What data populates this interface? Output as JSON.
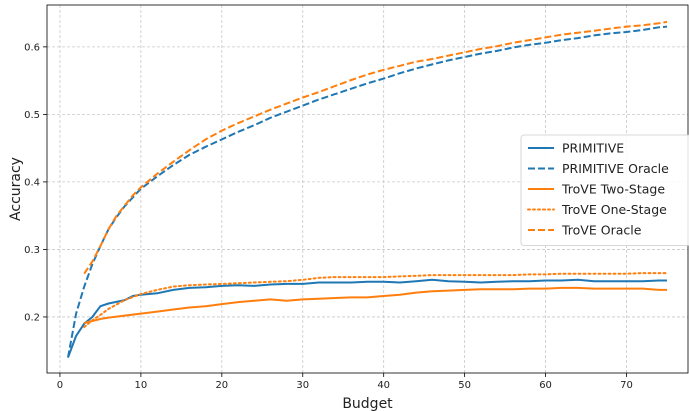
{
  "chart_data": {
    "type": "line",
    "title": "",
    "xlabel": "Budget",
    "ylabel": "Accuracy",
    "xlim": [
      -1.6,
      77.6
    ],
    "ylim": [
      0.117,
      0.662
    ],
    "xticks": [
      0,
      10,
      20,
      30,
      40,
      50,
      60,
      70
    ],
    "yticks": [
      0.2,
      0.3,
      0.4,
      0.5,
      0.6
    ],
    "xtick_labels": [
      "0",
      "10",
      "20",
      "30",
      "40",
      "50",
      "60",
      "70"
    ],
    "ytick_labels": [
      "0.2",
      "0.3",
      "0.4",
      "0.5",
      "0.6"
    ],
    "grid": true,
    "legend_position": "center-right",
    "series": [
      {
        "name": "PRIMITIVE",
        "color": "#1f77b4",
        "style": "solid",
        "points": [
          [
            1,
            0.14
          ],
          [
            2,
            0.172
          ],
          [
            3,
            0.19
          ],
          [
            4,
            0.2
          ],
          [
            5,
            0.216
          ],
          [
            6,
            0.22
          ],
          [
            8,
            0.225
          ],
          [
            9,
            0.231
          ],
          [
            10,
            0.233
          ],
          [
            12,
            0.235
          ],
          [
            14,
            0.24
          ],
          [
            16,
            0.243
          ],
          [
            18,
            0.244
          ],
          [
            20,
            0.246
          ],
          [
            22,
            0.247
          ],
          [
            24,
            0.246
          ],
          [
            26,
            0.248
          ],
          [
            28,
            0.249
          ],
          [
            30,
            0.249
          ],
          [
            32,
            0.251
          ],
          [
            34,
            0.251
          ],
          [
            36,
            0.251
          ],
          [
            38,
            0.252
          ],
          [
            40,
            0.252
          ],
          [
            42,
            0.251
          ],
          [
            44,
            0.253
          ],
          [
            46,
            0.255
          ],
          [
            48,
            0.253
          ],
          [
            50,
            0.252
          ],
          [
            52,
            0.251
          ],
          [
            54,
            0.252
          ],
          [
            56,
            0.253
          ],
          [
            58,
            0.253
          ],
          [
            60,
            0.254
          ],
          [
            62,
            0.254
          ],
          [
            64,
            0.255
          ],
          [
            66,
            0.253
          ],
          [
            68,
            0.253
          ],
          [
            70,
            0.253
          ],
          [
            72,
            0.253
          ],
          [
            74,
            0.254
          ],
          [
            75,
            0.254
          ]
        ]
      },
      {
        "name": "PRIMITIVE Oracle",
        "color": "#1f77b4",
        "style": "dashed",
        "points": [
          [
            1,
            0.14
          ],
          [
            2,
            0.205
          ],
          [
            3,
            0.245
          ],
          [
            4,
            0.278
          ],
          [
            5,
            0.305
          ],
          [
            6,
            0.33
          ],
          [
            7,
            0.348
          ],
          [
            8,
            0.364
          ],
          [
            9,
            0.377
          ],
          [
            10,
            0.39
          ],
          [
            12,
            0.408
          ],
          [
            14,
            0.425
          ],
          [
            16,
            0.44
          ],
          [
            18,
            0.452
          ],
          [
            20,
            0.463
          ],
          [
            22,
            0.474
          ],
          [
            24,
            0.484
          ],
          [
            26,
            0.495
          ],
          [
            28,
            0.504
          ],
          [
            30,
            0.513
          ],
          [
            32,
            0.522
          ],
          [
            34,
            0.53
          ],
          [
            36,
            0.538
          ],
          [
            38,
            0.546
          ],
          [
            40,
            0.553
          ],
          [
            42,
            0.561
          ],
          [
            44,
            0.568
          ],
          [
            46,
            0.574
          ],
          [
            48,
            0.58
          ],
          [
            50,
            0.585
          ],
          [
            52,
            0.59
          ],
          [
            54,
            0.594
          ],
          [
            56,
            0.599
          ],
          [
            58,
            0.603
          ],
          [
            60,
            0.606
          ],
          [
            62,
            0.61
          ],
          [
            64,
            0.613
          ],
          [
            66,
            0.617
          ],
          [
            68,
            0.62
          ],
          [
            70,
            0.622
          ],
          [
            72,
            0.625
          ],
          [
            74,
            0.629
          ],
          [
            75,
            0.63
          ]
        ]
      },
      {
        "name": "TroVE Two-Stage",
        "color": "#ff7f0e",
        "style": "solid",
        "points": [
          [
            3,
            0.191
          ],
          [
            4,
            0.194
          ],
          [
            5,
            0.197
          ],
          [
            6,
            0.199
          ],
          [
            8,
            0.202
          ],
          [
            10,
            0.205
          ],
          [
            12,
            0.208
          ],
          [
            14,
            0.211
          ],
          [
            16,
            0.214
          ],
          [
            18,
            0.216
          ],
          [
            20,
            0.219
          ],
          [
            22,
            0.222
          ],
          [
            24,
            0.224
          ],
          [
            26,
            0.226
          ],
          [
            28,
            0.224
          ],
          [
            30,
            0.226
          ],
          [
            32,
            0.227
          ],
          [
            34,
            0.228
          ],
          [
            36,
            0.229
          ],
          [
            38,
            0.229
          ],
          [
            40,
            0.231
          ],
          [
            42,
            0.233
          ],
          [
            44,
            0.236
          ],
          [
            46,
            0.238
          ],
          [
            48,
            0.239
          ],
          [
            50,
            0.24
          ],
          [
            52,
            0.241
          ],
          [
            54,
            0.241
          ],
          [
            56,
            0.241
          ],
          [
            58,
            0.242
          ],
          [
            60,
            0.242
          ],
          [
            62,
            0.243
          ],
          [
            64,
            0.243
          ],
          [
            66,
            0.242
          ],
          [
            68,
            0.242
          ],
          [
            70,
            0.242
          ],
          [
            72,
            0.242
          ],
          [
            74,
            0.24
          ],
          [
            75,
            0.24
          ]
        ]
      },
      {
        "name": "TroVE One-Stage",
        "color": "#ff7f0e",
        "style": "dotted",
        "points": [
          [
            3,
            0.185
          ],
          [
            4,
            0.195
          ],
          [
            5,
            0.203
          ],
          [
            6,
            0.212
          ],
          [
            8,
            0.225
          ],
          [
            10,
            0.234
          ],
          [
            12,
            0.24
          ],
          [
            14,
            0.245
          ],
          [
            16,
            0.247
          ],
          [
            18,
            0.248
          ],
          [
            20,
            0.249
          ],
          [
            22,
            0.25
          ],
          [
            24,
            0.251
          ],
          [
            26,
            0.252
          ],
          [
            28,
            0.253
          ],
          [
            30,
            0.255
          ],
          [
            32,
            0.258
          ],
          [
            34,
            0.259
          ],
          [
            36,
            0.259
          ],
          [
            38,
            0.259
          ],
          [
            40,
            0.259
          ],
          [
            42,
            0.26
          ],
          [
            44,
            0.261
          ],
          [
            46,
            0.262
          ],
          [
            48,
            0.262
          ],
          [
            50,
            0.262
          ],
          [
            52,
            0.262
          ],
          [
            54,
            0.262
          ],
          [
            56,
            0.262
          ],
          [
            58,
            0.263
          ],
          [
            60,
            0.263
          ],
          [
            62,
            0.264
          ],
          [
            64,
            0.264
          ],
          [
            66,
            0.264
          ],
          [
            68,
            0.264
          ],
          [
            70,
            0.264
          ],
          [
            72,
            0.265
          ],
          [
            74,
            0.265
          ],
          [
            75,
            0.265
          ]
        ]
      },
      {
        "name": "TroVE Oracle",
        "color": "#ff7f0e",
        "style": "dashed",
        "points": [
          [
            3,
            0.264
          ],
          [
            4,
            0.282
          ],
          [
            5,
            0.305
          ],
          [
            6,
            0.33
          ],
          [
            7,
            0.35
          ],
          [
            8,
            0.365
          ],
          [
            9,
            0.38
          ],
          [
            10,
            0.392
          ],
          [
            12,
            0.412
          ],
          [
            14,
            0.43
          ],
          [
            16,
            0.447
          ],
          [
            18,
            0.463
          ],
          [
            20,
            0.476
          ],
          [
            22,
            0.487
          ],
          [
            24,
            0.497
          ],
          [
            26,
            0.507
          ],
          [
            28,
            0.516
          ],
          [
            30,
            0.525
          ],
          [
            32,
            0.533
          ],
          [
            34,
            0.542
          ],
          [
            36,
            0.551
          ],
          [
            38,
            0.559
          ],
          [
            40,
            0.566
          ],
          [
            42,
            0.572
          ],
          [
            44,
            0.578
          ],
          [
            46,
            0.582
          ],
          [
            48,
            0.587
          ],
          [
            50,
            0.592
          ],
          [
            52,
            0.597
          ],
          [
            54,
            0.601
          ],
          [
            56,
            0.606
          ],
          [
            58,
            0.61
          ],
          [
            60,
            0.614
          ],
          [
            62,
            0.618
          ],
          [
            64,
            0.621
          ],
          [
            66,
            0.624
          ],
          [
            68,
            0.627
          ],
          [
            70,
            0.63
          ],
          [
            72,
            0.632
          ],
          [
            74,
            0.635
          ],
          [
            75,
            0.637
          ]
        ]
      }
    ]
  }
}
